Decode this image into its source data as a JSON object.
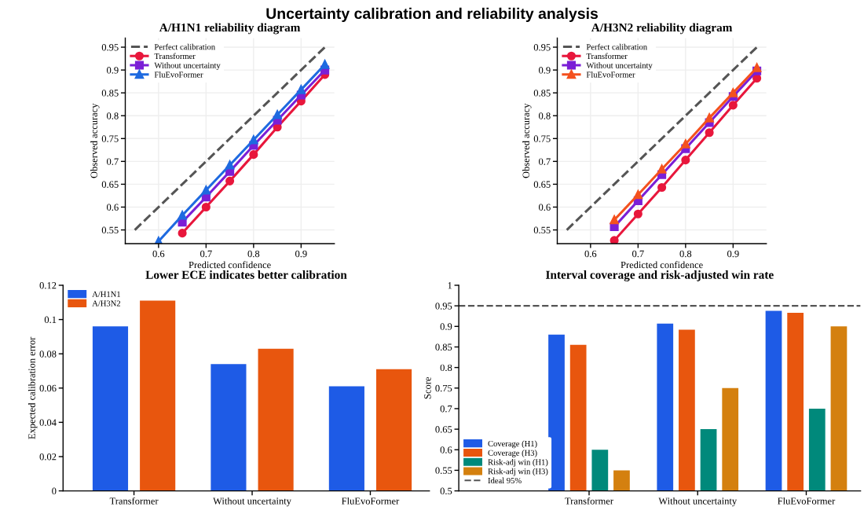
{
  "chart_data": [
    {
      "type": "line",
      "annotations": [
        "Uncertainty calibration and reliability analysis"
      ],
      "title": "A/H1N1 reliability diagram",
      "xlabel": "Predicted confidence",
      "ylabel": "Observed accuracy",
      "xlim": [
        0.53,
        0.97
      ],
      "ylim": [
        0.52,
        0.97
      ],
      "xticks": [
        0.6,
        0.7,
        0.8,
        0.9
      ],
      "yticks": [
        0.55,
        0.6,
        0.65,
        0.7,
        0.75,
        0.8,
        0.85,
        0.9,
        0.95
      ],
      "grid": true,
      "legend": "top left",
      "marker": "circle",
      "series": [
        {
          "name": "Perfect calibration",
          "color": "#555555",
          "line_style": "dashed",
          "marker": "none",
          "x": [
            0.55,
            0.95
          ],
          "values": [
            0.55,
            0.95
          ]
        },
        {
          "name": "Transformer",
          "color": "#e8173c",
          "x": [
            0.65,
            0.7,
            0.75,
            0.8,
            0.85,
            0.9,
            0.95
          ],
          "values": [
            0.543,
            0.6,
            0.657,
            0.715,
            0.775,
            0.832,
            0.89
          ]
        },
        {
          "name": "Without uncertainty",
          "color": "#7b1fd6",
          "marker": "square",
          "x": [
            0.65,
            0.7,
            0.75,
            0.8,
            0.85,
            0.9,
            0.95
          ],
          "values": [
            0.567,
            0.622,
            0.678,
            0.735,
            0.79,
            0.845,
            0.9
          ]
        },
        {
          "name": "FluEvoFormer",
          "color": "#1e6ae0",
          "marker": "triangle",
          "x": [
            0.6,
            0.65,
            0.7,
            0.75,
            0.8,
            0.85,
            0.9,
            0.95
          ],
          "values": [
            0.525,
            0.582,
            0.637,
            0.692,
            0.747,
            0.802,
            0.857,
            0.912
          ]
        }
      ]
    },
    {
      "type": "line",
      "title": "A/H3N2 reliability diagram",
      "xlabel": "Predicted confidence",
      "ylabel": "Observed accuracy",
      "xlim": [
        0.53,
        0.97
      ],
      "ylim": [
        0.52,
        0.97
      ],
      "xticks": [
        0.6,
        0.7,
        0.8,
        0.9
      ],
      "yticks": [
        0.55,
        0.6,
        0.65,
        0.7,
        0.75,
        0.8,
        0.85,
        0.9,
        0.95
      ],
      "grid": true,
      "legend": "top left",
      "marker": "circle",
      "series": [
        {
          "name": "Perfect calibration",
          "color": "#555555",
          "line_style": "dashed",
          "marker": "none",
          "x": [
            0.55,
            0.95
          ],
          "values": [
            0.55,
            0.95
          ]
        },
        {
          "name": "Transformer",
          "color": "#e8173c",
          "x": [
            0.65,
            0.7,
            0.75,
            0.8,
            0.85,
            0.9,
            0.95
          ],
          "values": [
            0.527,
            0.585,
            0.643,
            0.703,
            0.763,
            0.823,
            0.882
          ]
        },
        {
          "name": "Without uncertainty",
          "color": "#7b1fd6",
          "marker": "square",
          "x": [
            0.65,
            0.7,
            0.75,
            0.8,
            0.85,
            0.9,
            0.95
          ],
          "values": [
            0.557,
            0.614,
            0.671,
            0.728,
            0.785,
            0.842,
            0.898
          ]
        },
        {
          "name": "FluEvoFormer",
          "color": "#f4511e",
          "marker": "triangle",
          "x": [
            0.65,
            0.7,
            0.75,
            0.8,
            0.85,
            0.9,
            0.95
          ],
          "values": [
            0.572,
            0.627,
            0.683,
            0.738,
            0.795,
            0.85,
            0.905
          ]
        }
      ]
    },
    {
      "type": "bar",
      "title": "Lower ECE indicates better calibration",
      "ylabel": "Expected calibration error",
      "categories": [
        "Transformer",
        "Without uncertainty",
        "FluEvoFormer"
      ],
      "ylim": [
        0,
        0.12
      ],
      "yticks": [
        0,
        0.02,
        0.04,
        0.06,
        0.08,
        0.1,
        0.12
      ],
      "grid": false,
      "legend": "top left",
      "series": [
        {
          "name": "A/H1N1",
          "color": "#1e5be6",
          "values": [
            0.096,
            0.074,
            0.061
          ]
        },
        {
          "name": "A/H3N2",
          "color": "#e8560e",
          "values": [
            0.111,
            0.083,
            0.071
          ]
        }
      ]
    },
    {
      "type": "bar",
      "title": "Interval coverage and risk-adjusted win rate",
      "ylabel": "Score",
      "categories": [
        "Transformer",
        "Without uncertainty",
        "FluEvoFormer"
      ],
      "ylim": [
        0.5,
        1
      ],
      "yticks": [
        0.5,
        0.55,
        0.6,
        0.65,
        0.7,
        0.75,
        0.8,
        0.85,
        0.9,
        0.95,
        1
      ],
      "grid": false,
      "legend": "bottom left",
      "ref_lines": [
        {
          "axis": "y",
          "value": 0.95,
          "label": "Ideal 95%",
          "color": "#555555",
          "line_style": "dashed"
        }
      ],
      "series": [
        {
          "name": "Coverage (H1)",
          "color": "#1e5be6",
          "values": [
            0.88,
            0.907,
            0.938
          ]
        },
        {
          "name": "Coverage (H3)",
          "color": "#e8560e",
          "values": [
            0.855,
            0.892,
            0.933
          ]
        },
        {
          "name": "Risk-adj win (H1)",
          "color": "#00897b",
          "values": [
            0.6,
            0.65,
            0.7
          ]
        },
        {
          "name": "Risk-adj win (H3)",
          "color": "#d4800f",
          "values": [
            0.55,
            0.75,
            0.9
          ]
        }
      ]
    }
  ]
}
